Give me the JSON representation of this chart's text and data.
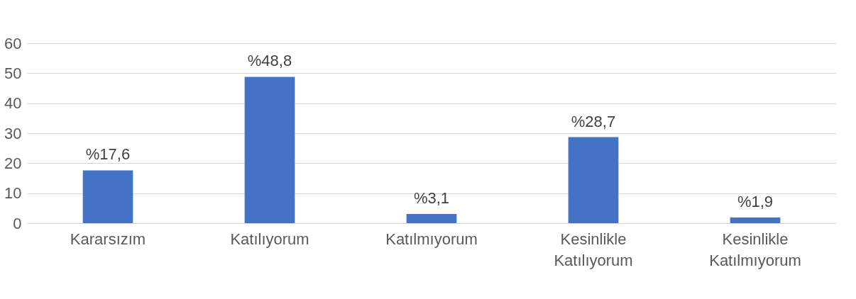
{
  "chart_data": {
    "type": "bar",
    "categories": [
      "Kararsızım",
      "Katılıyorum",
      "Katılmıyorum",
      "Kesinlikle Katılıyorum",
      "Kesinlikle Katılmıyorum"
    ],
    "values": [
      17.6,
      48.8,
      3.1,
      28.7,
      1.9
    ],
    "value_labels": [
      "%17,6",
      "%48,8",
      "%3,1",
      "%28,7",
      "%1,9"
    ],
    "color": "#4472c4",
    "ylim": [
      0,
      60
    ],
    "yticks": [
      0,
      10,
      20,
      30,
      40,
      50,
      60
    ],
    "grid": "y"
  }
}
